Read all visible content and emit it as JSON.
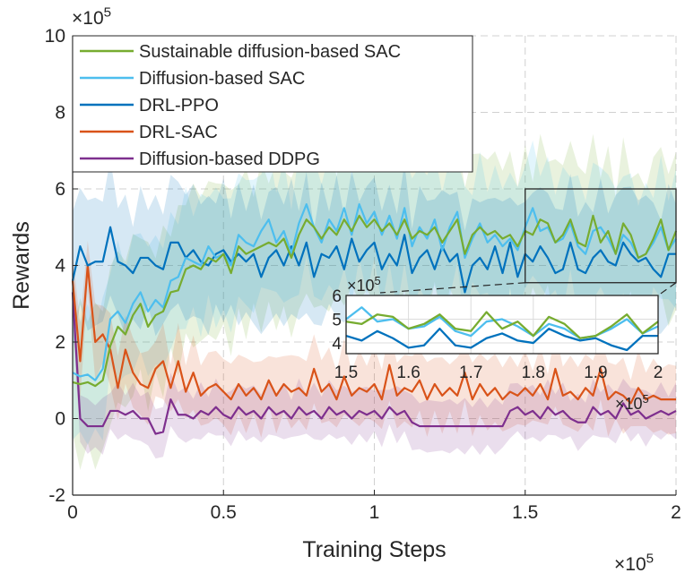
{
  "chart_data": {
    "type": "line",
    "title": "",
    "xlabel": "Training Steps",
    "ylabel": "Rewards",
    "x_exponent_label": "×10^5",
    "y_exponent_label": "×10^5",
    "xlim": [
      0,
      2
    ],
    "ylim": [
      -2,
      10
    ],
    "xticks": [
      "0",
      "0.5",
      "1",
      "1.5",
      "2"
    ],
    "yticks": [
      "-2",
      "0",
      "2",
      "4",
      "6",
      "8",
      "10"
    ],
    "grid": true,
    "legend_placement": "top-left",
    "x": [
      0,
      0.025,
      0.05,
      0.075,
      0.1,
      0.125,
      0.15,
      0.175,
      0.2,
      0.225,
      0.25,
      0.275,
      0.3,
      0.325,
      0.35,
      0.375,
      0.4,
      0.425,
      0.45,
      0.475,
      0.5,
      0.525,
      0.55,
      0.575,
      0.6,
      0.625,
      0.65,
      0.675,
      0.7,
      0.725,
      0.75,
      0.775,
      0.8,
      0.825,
      0.85,
      0.875,
      0.9,
      0.925,
      0.95,
      0.975,
      1.0,
      1.025,
      1.05,
      1.075,
      1.1,
      1.125,
      1.15,
      1.175,
      1.2,
      1.225,
      1.25,
      1.275,
      1.3,
      1.325,
      1.35,
      1.375,
      1.4,
      1.425,
      1.45,
      1.475,
      1.5,
      1.525,
      1.55,
      1.575,
      1.6,
      1.625,
      1.65,
      1.675,
      1.7,
      1.725,
      1.75,
      1.775,
      1.8,
      1.825,
      1.85,
      1.875,
      1.9,
      1.925,
      1.95,
      1.975,
      2.0
    ],
    "series": [
      {
        "name": "Sustainable diffusion-based SAC",
        "color": "#77AC30",
        "band_std": 1.8,
        "values": [
          0.95,
          0.9,
          0.95,
          0.85,
          1.0,
          1.9,
          2.4,
          2.2,
          2.7,
          3.0,
          2.4,
          2.7,
          2.8,
          3.3,
          3.35,
          3.9,
          4.0,
          3.9,
          4.2,
          4.1,
          4.3,
          3.8,
          4.5,
          4.3,
          4.4,
          4.5,
          4.6,
          4.5,
          4.7,
          4.2,
          4.8,
          5.2,
          5.0,
          4.7,
          5.0,
          4.8,
          5.2,
          4.9,
          5.3,
          5.0,
          5.2,
          4.9,
          5.1,
          4.8,
          5.2,
          4.7,
          4.9,
          4.8,
          5.0,
          4.6,
          4.9,
          5.2,
          4.3,
          4.8,
          5.0,
          4.8,
          4.9,
          4.7,
          4.8,
          4.5,
          4.9,
          4.8,
          5.2,
          5.1,
          4.6,
          4.8,
          5.2,
          4.6,
          4.5,
          5.3,
          4.6,
          4.9,
          4.3,
          5.1,
          4.8,
          4.2,
          4.3,
          4.7,
          5.2,
          4.4,
          4.9
        ]
      },
      {
        "name": "Diffusion-based SAC",
        "color": "#4DBEEE",
        "band_std": 1.5,
        "values": [
          1.2,
          1.1,
          1.15,
          1.0,
          1.3,
          2.6,
          2.8,
          2.5,
          3.0,
          3.3,
          2.8,
          3.1,
          2.9,
          3.6,
          3.7,
          4.2,
          4.1,
          4.0,
          4.5,
          4.2,
          4.3,
          4.0,
          4.8,
          4.6,
          4.5,
          4.9,
          5.2,
          4.6,
          4.9,
          4.3,
          5.1,
          5.6,
          5.0,
          4.6,
          5.2,
          4.9,
          5.5,
          4.8,
          5.6,
          5.1,
          5.4,
          4.8,
          5.3,
          4.7,
          5.5,
          4.5,
          5.0,
          4.7,
          5.2,
          4.4,
          5.0,
          5.4,
          4.2,
          4.7,
          5.1,
          4.6,
          4.8,
          4.5,
          4.7,
          4.4,
          5.0,
          5.5,
          4.9,
          5.0,
          4.6,
          4.7,
          5.1,
          4.5,
          4.3,
          4.9,
          5.0,
          4.7,
          4.3,
          4.8,
          4.6,
          4.2,
          4.3,
          4.6,
          5.0,
          4.4,
          4.7
        ]
      },
      {
        "name": "DRL-PPO",
        "color": "#0072BD",
        "band_std": 1.5,
        "values": [
          3.6,
          4.5,
          4.0,
          4.1,
          4.1,
          5.0,
          4.1,
          4.0,
          3.8,
          4.2,
          4.2,
          4.0,
          3.9,
          4.6,
          4.6,
          4.2,
          4.4,
          4.1,
          4.0,
          4.3,
          4.4,
          4.1,
          4.3,
          4.1,
          4.3,
          3.7,
          4.2,
          4.4,
          4.0,
          4.5,
          4.0,
          4.6,
          3.7,
          4.3,
          4.2,
          4.5,
          3.9,
          4.7,
          4.1,
          4.4,
          4.6,
          3.9,
          4.3,
          4.0,
          4.8,
          3.8,
          4.2,
          4.4,
          3.9,
          4.5,
          4.1,
          4.3,
          3.3,
          4.0,
          4.2,
          3.9,
          4.5,
          3.8,
          4.6,
          3.7,
          4.3,
          4.1,
          4.5,
          4.2,
          3.8,
          3.9,
          4.6,
          3.9,
          3.8,
          4.2,
          4.4,
          4.1,
          4.0,
          4.6,
          4.3,
          4.1,
          4.2,
          3.9,
          3.7,
          4.3,
          4.3
        ]
      },
      {
        "name": "DRL-SAC",
        "color": "#D95319",
        "band_std": 0.8,
        "values": [
          3.6,
          1.5,
          4.0,
          2.0,
          2.2,
          1.8,
          0.8,
          1.8,
          1.2,
          0.9,
          0.8,
          1.3,
          1.5,
          0.8,
          1.5,
          0.7,
          1.2,
          0.6,
          0.8,
          0.9,
          0.7,
          0.5,
          0.9,
          0.6,
          0.8,
          0.5,
          1.0,
          0.6,
          0.9,
          0.7,
          0.8,
          0.6,
          1.3,
          0.7,
          0.9,
          0.5,
          1.1,
          0.6,
          0.8,
          0.7,
          0.9,
          0.5,
          1.4,
          0.6,
          0.8,
          0.7,
          1.0,
          0.5,
          0.9,
          0.6,
          0.8,
          0.6,
          1.2,
          0.5,
          0.9,
          0.6,
          0.8,
          0.5,
          0.7,
          0.6,
          0.8,
          0.6,
          0.9,
          0.5,
          1.3,
          0.6,
          0.7,
          0.5,
          0.8,
          0.6,
          1.3,
          0.5,
          0.7,
          0.6,
          0.4,
          0.8,
          0.5,
          0.6,
          0.5,
          0.5,
          0.5
        ]
      },
      {
        "name": "Diffusion-based DDPG",
        "color": "#7E2F8E",
        "band_std": 0.6,
        "values": [
          3.3,
          0.0,
          -0.2,
          -0.2,
          -0.2,
          0.2,
          0.2,
          0.1,
          0.2,
          0.0,
          0.0,
          -0.4,
          -0.35,
          0.5,
          0.1,
          0.1,
          0.0,
          0.2,
          0.1,
          0.3,
          0.1,
          0.0,
          0.3,
          0.1,
          0.2,
          0.0,
          0.3,
          0.1,
          0.2,
          0.0,
          0.3,
          0.1,
          0.2,
          0.0,
          0.3,
          0.1,
          0.2,
          0.0,
          0.2,
          0.1,
          0.2,
          0.0,
          0.3,
          0.1,
          0.2,
          -0.1,
          -0.2,
          -0.2,
          -0.2,
          -0.2,
          -0.2,
          -0.2,
          -0.2,
          -0.2,
          -0.2,
          -0.2,
          -0.2,
          -0.2,
          0.2,
          0.3,
          0.1,
          0.2,
          0.0,
          0.3,
          0.1,
          0.2,
          0.0,
          -0.1,
          -0.1,
          0.3,
          0.1,
          0.2,
          0.0,
          0.4,
          0.1,
          0.2,
          0.0,
          0.1,
          0.2,
          0.1,
          0.2
        ]
      }
    ],
    "inset": {
      "xlim": [
        1.5,
        2
      ],
      "ylim": [
        3.55,
        6
      ],
      "xticks": [
        "1.5",
        "1.6",
        "1.7",
        "1.8",
        "1.9",
        "2"
      ],
      "yticks": [
        "4",
        "5",
        "6"
      ],
      "x_exponent_label": "×10^5",
      "y_exponent_label": "×10^5",
      "series_shown": [
        "Sustainable diffusion-based SAC",
        "Diffusion-based SAC",
        "DRL-PPO"
      ]
    }
  }
}
